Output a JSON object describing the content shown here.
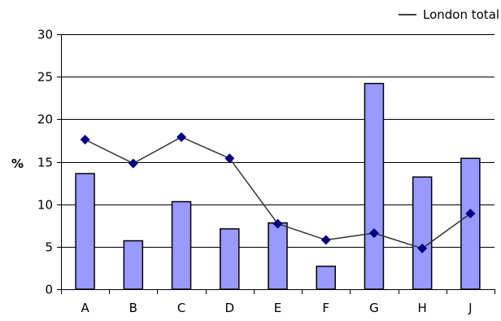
{
  "chart_data": {
    "type": "bar",
    "categories": [
      "A",
      "B",
      "C",
      "D",
      "E",
      "F",
      "G",
      "H",
      "J"
    ],
    "series": [
      {
        "type": "bar",
        "values": [
          13.6,
          5.7,
          10.3,
          7.1,
          7.8,
          2.7,
          24.2,
          13.2,
          15.4
        ]
      },
      {
        "name": "London total",
        "type": "line",
        "values": [
          17.6,
          14.8,
          17.9,
          15.4,
          7.7,
          5.8,
          6.6,
          4.8,
          8.9
        ]
      }
    ],
    "ylabel": "%",
    "xlabel": "",
    "ylim": [
      0,
      30
    ],
    "yticks": [
      0,
      5,
      10,
      15,
      20,
      25,
      30
    ],
    "grid": true,
    "legend": "top-right",
    "colors": {
      "bar_fill": "#9999ff",
      "bar_stroke": "#000000",
      "line": "#333333",
      "marker": "#000080"
    }
  }
}
